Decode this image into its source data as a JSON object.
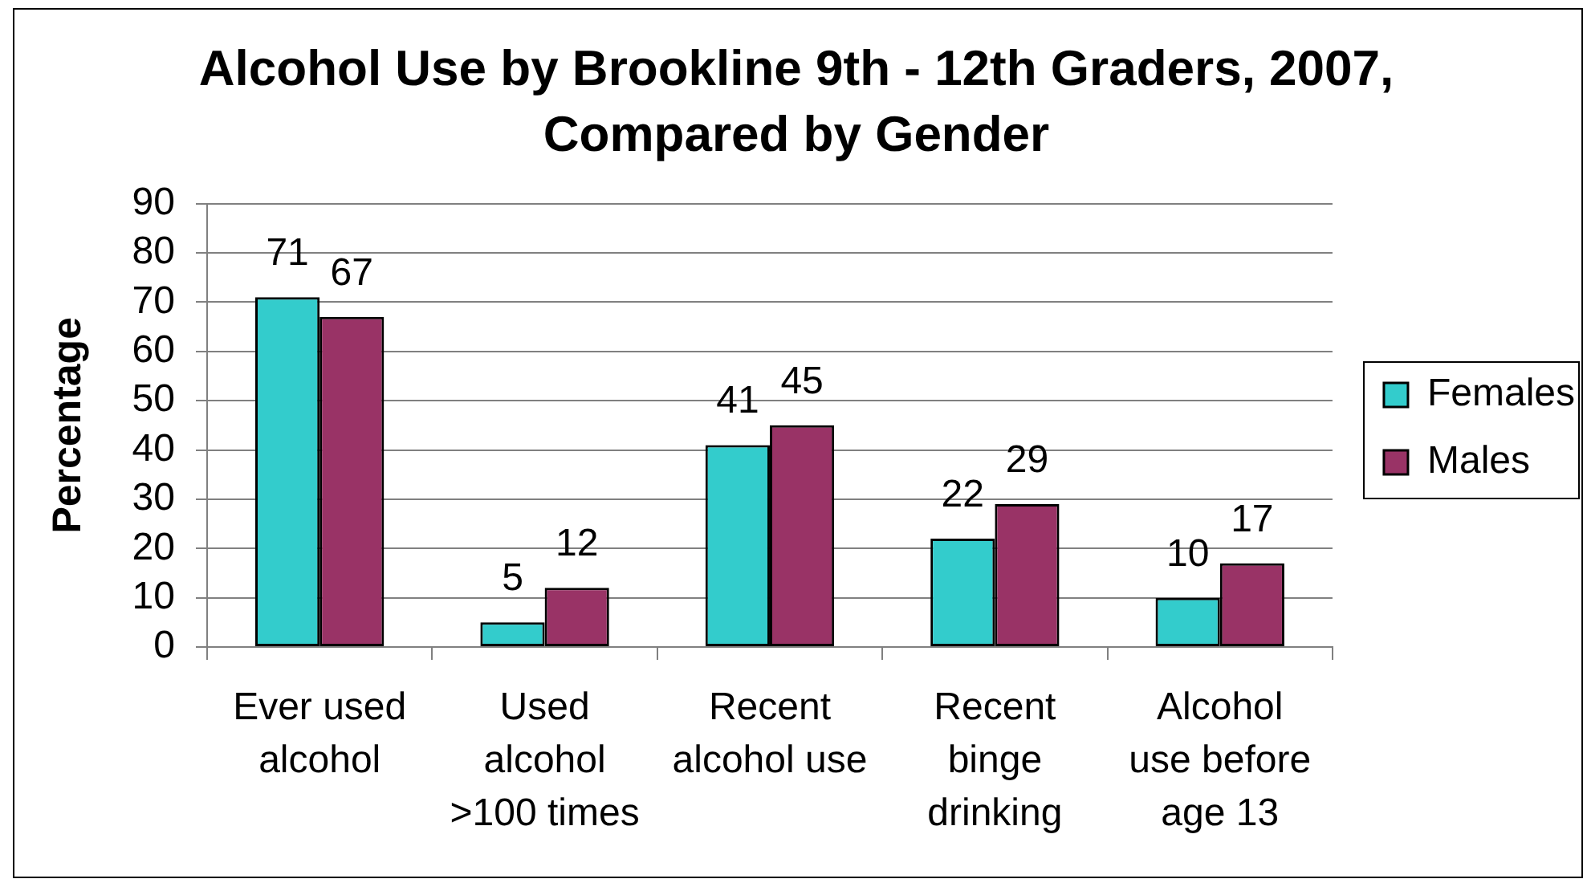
{
  "chart_data": {
    "type": "bar",
    "title": "Alcohol Use by Brookline 9th - 12th Graders, 2007, Compared by Gender",
    "ylabel": "Percentage",
    "categories": [
      "Ever used alcohol",
      "Used alcohol >100 times",
      "Recent alcohol use",
      "Recent binge drinking",
      "Alcohol use before age 13"
    ],
    "series": [
      {
        "name": "Females",
        "color": "#33cccc",
        "values": [
          71,
          5,
          41,
          22,
          10
        ]
      },
      {
        "name": "Males",
        "color": "#993366",
        "values": [
          67,
          12,
          45,
          29,
          17
        ]
      }
    ],
    "ylim": [
      0,
      90
    ],
    "yticks": [
      0,
      10,
      20,
      30,
      40,
      50,
      60,
      70,
      80,
      90
    ],
    "grid": "y",
    "legend": "right",
    "data_labels": true
  }
}
